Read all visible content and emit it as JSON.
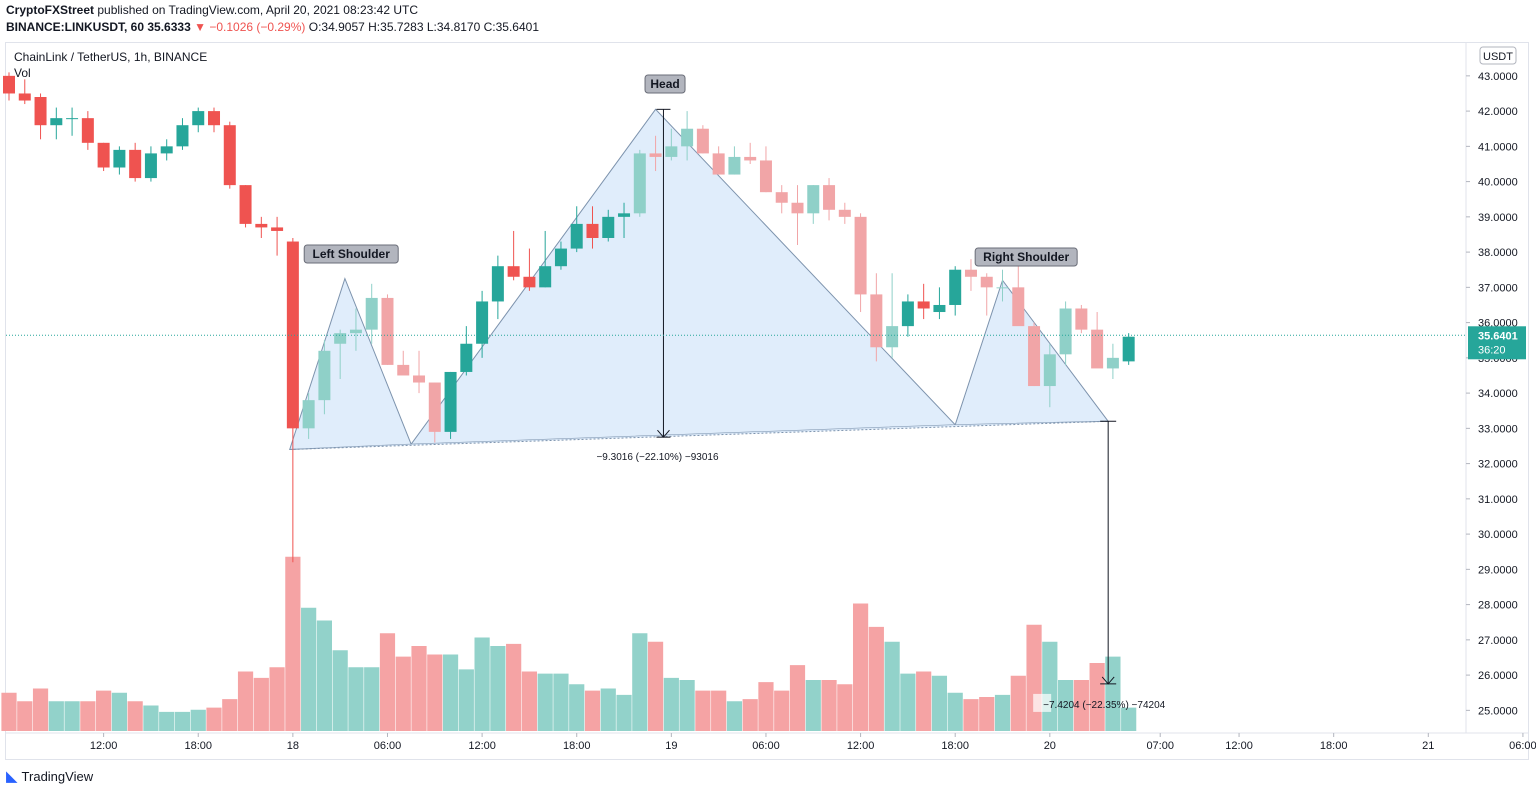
{
  "header": {
    "publisher": "CryptoFXStreet",
    "published_text": "published on TradingView.com, April 20, 2021 08:23:42 UTC",
    "symbol_line": "BINANCE:LINKUSDT, 60",
    "last": "35.6333",
    "change": "−0.1026 (−0.29%)",
    "ohlc_o": "O:34.9057",
    "ohlc_h": "H:35.7283",
    "ohlc_l": "L:34.8170",
    "ohlc_c": "C:35.6401"
  },
  "legend": {
    "title": "ChainLink / TetherUS, 1h, BINANCE",
    "vol": "Vol"
  },
  "footer": {
    "brand": "TradingView"
  },
  "colors": {
    "up": "#26a69a",
    "down": "#ef5350",
    "up_faded": "#8fd0c8",
    "down_faded": "#f1a5a7",
    "vol_up": "#92d2ca",
    "vol_down": "#f5a3a4",
    "pattern_fill": "#dbeafa",
    "pattern_stroke": "#7d93ad",
    "price_line": "#26a69a",
    "axis_text": "#131722"
  },
  "chart_data": {
    "type": "candlestick",
    "title": "ChainLink / TetherUS, 1h, BINANCE",
    "currency": "USDT",
    "ylim": [
      24.4,
      45.1
    ],
    "y_ticks": [
      "25.0000",
      "26.0000",
      "27.0000",
      "28.0000",
      "29.0000",
      "30.0000",
      "31.0000",
      "32.0000",
      "33.0000",
      "34.0000",
      "35.0000",
      "36.0000",
      "37.0000",
      "38.0000",
      "39.0000",
      "40.0000",
      "41.0000",
      "42.0000",
      "43.0000"
    ],
    "x_ticks": [
      {
        "label": "12:00",
        "bar": 6
      },
      {
        "label": "18:00",
        "bar": 12
      },
      {
        "label": "18",
        "bar": 18
      },
      {
        "label": "06:00",
        "bar": 24
      },
      {
        "label": "12:00",
        "bar": 30
      },
      {
        "label": "18:00",
        "bar": 36
      },
      {
        "label": "19",
        "bar": 42
      },
      {
        "label": "06:00",
        "bar": 48
      },
      {
        "label": "12:00",
        "bar": 54
      },
      {
        "label": "18:00",
        "bar": 60
      },
      {
        "label": "20",
        "bar": 66
      },
      {
        "label": "07:00",
        "bar": 73
      },
      {
        "label": "12:00",
        "bar": 78
      },
      {
        "label": "18:00",
        "bar": 84
      },
      {
        "label": "21",
        "bar": 90
      },
      {
        "label": "06:00",
        "bar": 96
      }
    ],
    "current_price": {
      "value": 35.6401,
      "label": "35.6401",
      "countdown": "36:20"
    },
    "candles": [
      [
        43.0,
        43.1,
        42.3,
        42.5
      ],
      [
        42.5,
        42.9,
        42.2,
        42.3
      ],
      [
        42.4,
        42.5,
        41.2,
        41.6
      ],
      [
        41.6,
        42.1,
        41.2,
        41.8
      ],
      [
        41.8,
        42.1,
        41.3,
        41.8
      ],
      [
        41.8,
        42.0,
        40.9,
        41.1
      ],
      [
        41.1,
        41.1,
        40.3,
        40.4
      ],
      [
        40.4,
        41.0,
        40.2,
        40.9
      ],
      [
        40.9,
        41.1,
        40.0,
        40.1
      ],
      [
        40.1,
        41.0,
        40.0,
        40.8
      ],
      [
        40.8,
        41.2,
        40.6,
        41.0
      ],
      [
        41.0,
        41.8,
        40.9,
        41.6
      ],
      [
        41.6,
        42.1,
        41.4,
        42.0
      ],
      [
        42.0,
        42.1,
        41.4,
        41.6
      ],
      [
        41.6,
        41.7,
        39.8,
        39.9
      ],
      [
        39.9,
        39.9,
        38.7,
        38.8
      ],
      [
        38.8,
        39.0,
        38.4,
        38.7
      ],
      [
        38.7,
        39.0,
        37.9,
        38.6
      ],
      [
        38.3,
        38.4,
        29.2,
        33.0
      ],
      [
        33.0,
        34.0,
        32.7,
        33.8
      ],
      [
        33.8,
        35.5,
        33.4,
        35.2
      ],
      [
        35.4,
        35.8,
        34.4,
        35.7
      ],
      [
        35.7,
        36.4,
        35.2,
        35.8
      ],
      [
        35.8,
        37.1,
        35.4,
        36.7
      ],
      [
        36.7,
        36.8,
        34.8,
        34.8
      ],
      [
        34.8,
        35.2,
        34.6,
        34.5
      ],
      [
        34.5,
        35.2,
        34.0,
        34.3
      ],
      [
        34.3,
        34.3,
        32.6,
        32.9
      ],
      [
        32.9,
        34.6,
        32.7,
        34.6
      ],
      [
        34.6,
        35.9,
        34.5,
        35.4
      ],
      [
        35.4,
        36.9,
        35.0,
        36.6
      ],
      [
        36.6,
        37.9,
        36.1,
        37.6
      ],
      [
        37.6,
        38.6,
        37.2,
        37.3
      ],
      [
        37.3,
        38.1,
        36.9,
        37.0
      ],
      [
        37.0,
        38.6,
        37.0,
        37.6
      ],
      [
        37.6,
        38.3,
        37.5,
        38.1
      ],
      [
        38.1,
        39.3,
        38.0,
        38.8
      ],
      [
        38.8,
        39.3,
        38.1,
        38.4
      ],
      [
        38.4,
        39.2,
        38.3,
        39.0
      ],
      [
        39.0,
        39.4,
        38.4,
        39.1
      ],
      [
        39.1,
        40.9,
        39.0,
        40.8
      ],
      [
        40.8,
        41.3,
        40.3,
        40.7
      ],
      [
        40.7,
        41.5,
        40.6,
        41.0
      ],
      [
        41.0,
        42.0,
        40.6,
        41.5
      ],
      [
        41.5,
        41.6,
        40.8,
        40.8
      ],
      [
        40.8,
        41.0,
        40.2,
        40.2
      ],
      [
        40.2,
        41.0,
        40.2,
        40.7
      ],
      [
        40.7,
        41.1,
        40.5,
        40.6
      ],
      [
        40.6,
        41.0,
        39.7,
        39.7
      ],
      [
        39.7,
        39.9,
        39.1,
        39.4
      ],
      [
        39.4,
        39.9,
        38.2,
        39.1
      ],
      [
        39.1,
        39.9,
        38.8,
        39.9
      ],
      [
        39.9,
        40.1,
        38.9,
        39.2
      ],
      [
        39.2,
        39.4,
        38.8,
        39.0
      ],
      [
        39.0,
        39.1,
        36.3,
        36.8
      ],
      [
        36.8,
        37.4,
        34.9,
        35.3
      ],
      [
        35.3,
        37.4,
        35.0,
        35.9
      ],
      [
        35.9,
        36.8,
        35.6,
        36.6
      ],
      [
        36.6,
        37.1,
        36.1,
        36.4
      ],
      [
        36.3,
        37.0,
        36.1,
        36.5
      ],
      [
        36.5,
        37.6,
        36.2,
        37.5
      ],
      [
        37.5,
        37.8,
        36.9,
        37.3
      ],
      [
        37.3,
        37.4,
        36.2,
        37.0
      ],
      [
        37.0,
        37.5,
        36.6,
        37.0
      ],
      [
        37.0,
        37.9,
        36.0,
        35.9
      ],
      [
        35.9,
        36.0,
        34.2,
        34.2
      ],
      [
        34.2,
        35.4,
        33.6,
        35.1
      ],
      [
        35.1,
        36.6,
        34.8,
        36.4
      ],
      [
        36.4,
        36.5,
        35.7,
        35.8
      ],
      [
        35.8,
        36.3,
        34.8,
        34.7
      ],
      [
        34.7,
        35.4,
        34.4,
        35.0
      ],
      [
        34.9,
        35.7,
        34.8,
        35.6
      ]
    ],
    "volumes": [
      0.9,
      0.7,
      1.0,
      0.7,
      0.7,
      0.7,
      0.95,
      0.9,
      0.7,
      0.6,
      0.45,
      0.45,
      0.5,
      0.55,
      0.75,
      1.4,
      1.25,
      1.5,
      4.1,
      2.9,
      2.6,
      1.9,
      1.5,
      1.5,
      2.3,
      1.75,
      2.0,
      1.8,
      1.8,
      1.45,
      2.2,
      2.0,
      2.05,
      1.4,
      1.35,
      1.35,
      1.1,
      0.95,
      1.0,
      0.85,
      2.3,
      2.1,
      1.25,
      1.2,
      0.95,
      0.95,
      0.7,
      0.75,
      1.15,
      0.95,
      1.55,
      1.2,
      1.2,
      1.1,
      3.0,
      2.45,
      2.1,
      1.35,
      1.4,
      1.3,
      0.9,
      0.75,
      0.8,
      0.85,
      1.3,
      2.5,
      2.1,
      1.2,
      1.2,
      1.6,
      1.75,
      0.55
    ],
    "volume_colors": "per-candle direction",
    "annotations": {
      "left_shoulder": "Left Shoulder",
      "head": "Head",
      "right_shoulder": "Right Shoulder",
      "measure_head": "−9.3016 (−22.10%) −93016",
      "measure_target": "−7.4204 (−22.35%) −74204"
    },
    "pattern_points": {
      "neckline": [
        [
          17.8,
          32.4
        ],
        [
          69.7,
          33.2
        ]
      ],
      "left_shoulder": [
        [
          17.8,
          32.4
        ],
        [
          21.3,
          37.25
        ],
        [
          25.5,
          32.55
        ]
      ],
      "head": [
        [
          25.5,
          32.55
        ],
        [
          41.0,
          42.05
        ],
        [
          60.0,
          33.1
        ]
      ],
      "right_shoulder": [
        [
          60.0,
          33.1
        ],
        [
          63.0,
          37.2
        ],
        [
          69.7,
          33.2
        ]
      ],
      "head_measure": [
        [
          41.5,
          42.05
        ],
        [
          41.5,
          32.75
        ]
      ],
      "target_measure": [
        [
          69.7,
          33.2
        ],
        [
          69.7,
          25.75
        ]
      ]
    }
  }
}
